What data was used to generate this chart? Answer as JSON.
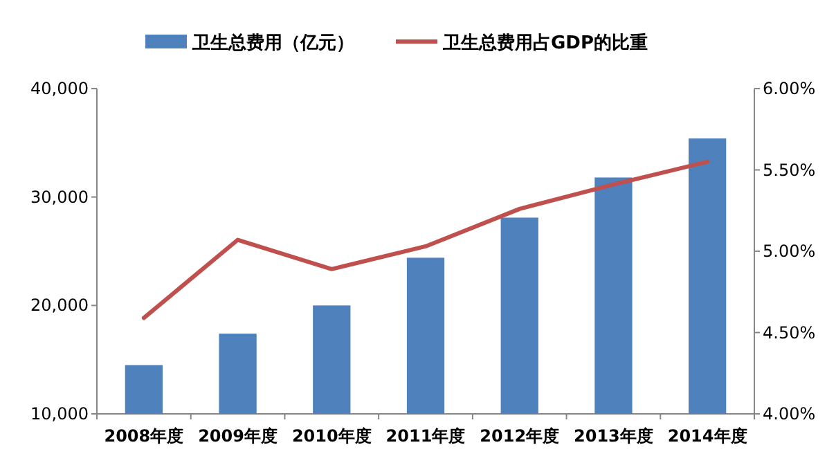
{
  "chart_data": {
    "type": "bar",
    "categories": [
      "2008年度",
      "2009年度",
      "2010年度",
      "2011年度",
      "2012年度",
      "2013年度",
      "2014年度"
    ],
    "series": [
      {
        "name": "卫生总费用（亿元）",
        "color": "#4f81bd",
        "values": [
          14500,
          17400,
          20000,
          24400,
          28100,
          31800,
          35400
        ]
      },
      {
        "name": "卫生总费用占GDP的比重",
        "type": "line",
        "axis": "y2",
        "color": "#c0504d",
        "values": [
          4.59,
          5.07,
          4.89,
          5.03,
          5.26,
          5.41,
          5.55
        ]
      }
    ],
    "ylim": [
      10000,
      40000
    ],
    "yticks": [
      {
        "value": 10000,
        "label": "10,000"
      },
      {
        "value": 20000,
        "label": "20,000"
      },
      {
        "value": 30000,
        "label": "30,000"
      },
      {
        "value": 40000,
        "label": "40,000"
      }
    ],
    "y2lim": [
      4.0,
      6.0
    ],
    "y2ticks": [
      {
        "value": 4.0,
        "label": "4.00%"
      },
      {
        "value": 4.5,
        "label": "4.50%"
      },
      {
        "value": 5.0,
        "label": "5.00%"
      },
      {
        "value": 5.5,
        "label": "5.50%"
      },
      {
        "value": 6.0,
        "label": "6.00%"
      }
    ],
    "legend": "top",
    "grid": false
  }
}
